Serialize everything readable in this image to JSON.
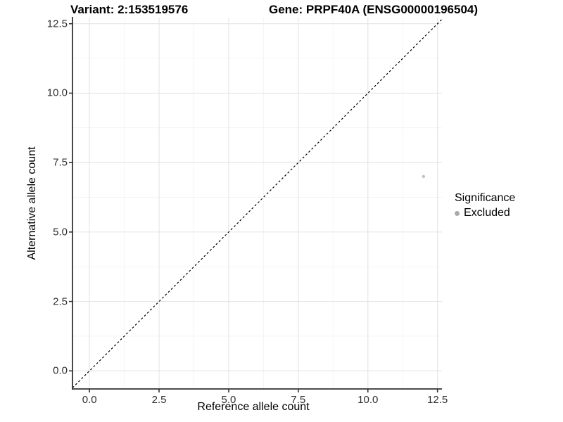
{
  "chart_data": {
    "type": "scatter",
    "title_left": "Variant: 2:153519576",
    "title_right": "Gene: PRPF40A (ENSG00000196504)",
    "xlabel": "Reference allele count",
    "ylabel": "Alternative allele count",
    "xlim": [
      -0.61,
      12.66
    ],
    "ylim": [
      -0.65,
      12.72
    ],
    "xticks": [
      0,
      2.5,
      5,
      7.5,
      10,
      12.5
    ],
    "yticks": [
      0,
      2.5,
      5,
      7.5,
      10,
      12.5
    ],
    "xtick_labels": [
      "0.0",
      "2.5",
      "5.0",
      "7.5",
      "10.0",
      "12.5"
    ],
    "ytick_labels": [
      "0.0",
      "2.5",
      "5.0",
      "7.5",
      "10.0",
      "12.5"
    ],
    "minor_ticks": [
      1.25,
      3.75,
      6.25,
      8.75,
      11.25
    ],
    "grid": true,
    "series": [
      {
        "name": "Excluded",
        "points": [
          {
            "x": 12,
            "y": 7
          }
        ],
        "color": "#c2c2c2",
        "radius": 2.2
      }
    ],
    "reference_line": {
      "type": "identity",
      "style": "dashed",
      "color": "#000000"
    },
    "legend": {
      "position": "right",
      "title": "Significance",
      "items": [
        {
          "label": "Excluded",
          "color": "#aaaaaa"
        }
      ]
    },
    "colors": {
      "background": "#ffffff",
      "grid_major": "#e4e4e4",
      "grid_minor": "#f1f1f1",
      "axis": "#333333",
      "tick_label": "#303030",
      "point": "#c2c2c2"
    }
  }
}
